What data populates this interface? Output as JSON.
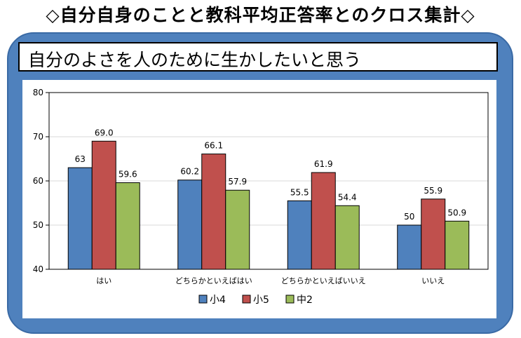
{
  "page": {
    "title": "◇自分自身のことと教科平均正答率とのクロス集計◇",
    "subtitle": "自分のよさを人のために生かしたいと思う"
  },
  "colors": {
    "frame": "#4f81bd"
  },
  "chart_data": {
    "type": "bar",
    "categories": [
      "はい",
      "どちらかといえばはい",
      "どちらかといえばいいえ",
      "いいえ"
    ],
    "series": [
      {
        "name": "小4",
        "values": [
          63,
          60.2,
          55.5,
          50
        ],
        "labels": [
          "63",
          "60.2",
          "55.5",
          "50"
        ],
        "color": "#4f81bd"
      },
      {
        "name": "小5",
        "values": [
          69.0,
          66.1,
          61.9,
          55.9
        ],
        "labels": [
          "69.0",
          "66.1",
          "61.9",
          "55.9"
        ],
        "color": "#c0504d"
      },
      {
        "name": "中2",
        "values": [
          59.6,
          57.9,
          54.4,
          50.9
        ],
        "labels": [
          "59.6",
          "57.9",
          "54.4",
          "50.9"
        ],
        "color": "#9bbb59"
      }
    ],
    "yticks": [
      "40",
      "50",
      "60",
      "70",
      "80"
    ],
    "ylim": [
      40,
      80
    ],
    "grid": true,
    "legend": "bottom"
  }
}
